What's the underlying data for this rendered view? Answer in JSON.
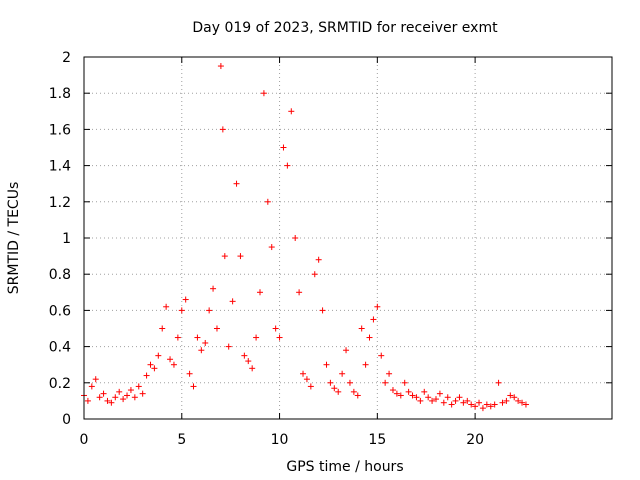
{
  "chart_data": {
    "type": "scatter",
    "title": "Day 019 of 2023, SRMTID for receiver exmt",
    "xlabel": "GPS time / hours",
    "ylabel": "SRMTID / TECUs",
    "xlim": [
      0,
      27
    ],
    "ylim": [
      0,
      2
    ],
    "xticks": [
      0,
      5,
      10,
      15,
      20
    ],
    "yticks": [
      0,
      0.2,
      0.4,
      0.6,
      0.8,
      1,
      1.2,
      1.4,
      1.6,
      1.8,
      2
    ],
    "xtick_labels": [
      "0",
      "5",
      "10",
      "15",
      "20"
    ],
    "ytick_labels": [
      "0",
      "0.2",
      "0.4",
      "0.6",
      "0.8",
      "1",
      "1.2",
      "1.4",
      "1.6",
      "1.8",
      "2"
    ],
    "grid": true,
    "marker": "+",
    "color": "#ff0000",
    "series": [
      {
        "name": "SRMTID",
        "x": [
          0.0,
          0.2,
          0.4,
          0.6,
          0.8,
          1.0,
          1.2,
          1.4,
          1.6,
          1.8,
          2.0,
          2.2,
          2.4,
          2.6,
          2.8,
          3.0,
          3.2,
          3.4,
          3.6,
          3.8,
          4.0,
          4.2,
          4.4,
          4.6,
          4.8,
          5.0,
          5.2,
          5.4,
          5.6,
          5.8,
          6.0,
          6.2,
          6.4,
          6.6,
          6.8,
          7.0,
          7.1,
          7.2,
          7.4,
          7.6,
          7.8,
          8.0,
          8.2,
          8.4,
          8.6,
          8.8,
          9.0,
          9.2,
          9.4,
          9.6,
          9.8,
          10.0,
          10.2,
          10.4,
          10.6,
          10.8,
          11.0,
          11.2,
          11.4,
          11.6,
          11.8,
          12.0,
          12.2,
          12.4,
          12.6,
          12.8,
          13.0,
          13.2,
          13.4,
          13.6,
          13.8,
          14.0,
          14.2,
          14.4,
          14.6,
          14.8,
          15.0,
          15.2,
          15.4,
          15.6,
          15.8,
          16.0,
          16.2,
          16.4,
          16.6,
          16.8,
          17.0,
          17.2,
          17.4,
          17.6,
          17.8,
          18.0,
          18.2,
          18.4,
          18.6,
          18.8,
          19.0,
          19.2,
          19.4,
          19.6,
          19.8,
          20.0,
          20.2,
          20.4,
          20.6,
          20.8,
          21.0,
          21.2,
          21.4,
          21.6,
          21.8,
          22.0,
          22.2,
          22.4,
          22.6
        ],
        "y": [
          0.13,
          0.1,
          0.18,
          0.22,
          0.12,
          0.14,
          0.1,
          0.09,
          0.12,
          0.15,
          0.11,
          0.13,
          0.16,
          0.12,
          0.18,
          0.14,
          0.24,
          0.3,
          0.28,
          0.35,
          0.5,
          0.62,
          0.33,
          0.3,
          0.45,
          0.6,
          0.66,
          0.25,
          0.18,
          0.45,
          0.38,
          0.42,
          0.6,
          0.72,
          0.5,
          1.95,
          1.6,
          0.9,
          0.4,
          0.65,
          1.3,
          0.9,
          0.35,
          0.32,
          0.28,
          0.45,
          0.7,
          1.8,
          1.2,
          0.95,
          0.5,
          0.45,
          1.5,
          1.4,
          1.7,
          1.0,
          0.7,
          0.25,
          0.22,
          0.18,
          0.8,
          0.88,
          0.6,
          0.3,
          0.2,
          0.17,
          0.15,
          0.25,
          0.38,
          0.2,
          0.15,
          0.13,
          0.5,
          0.3,
          0.45,
          0.55,
          0.62,
          0.35,
          0.2,
          0.25,
          0.16,
          0.14,
          0.13,
          0.2,
          0.15,
          0.13,
          0.12,
          0.1,
          0.15,
          0.12,
          0.1,
          0.11,
          0.14,
          0.09,
          0.12,
          0.08,
          0.1,
          0.12,
          0.09,
          0.1,
          0.08,
          0.07,
          0.09,
          0.06,
          0.08,
          0.07,
          0.08,
          0.2,
          0.09,
          0.1,
          0.13,
          0.12,
          0.1,
          0.09,
          0.08
        ]
      }
    ]
  }
}
